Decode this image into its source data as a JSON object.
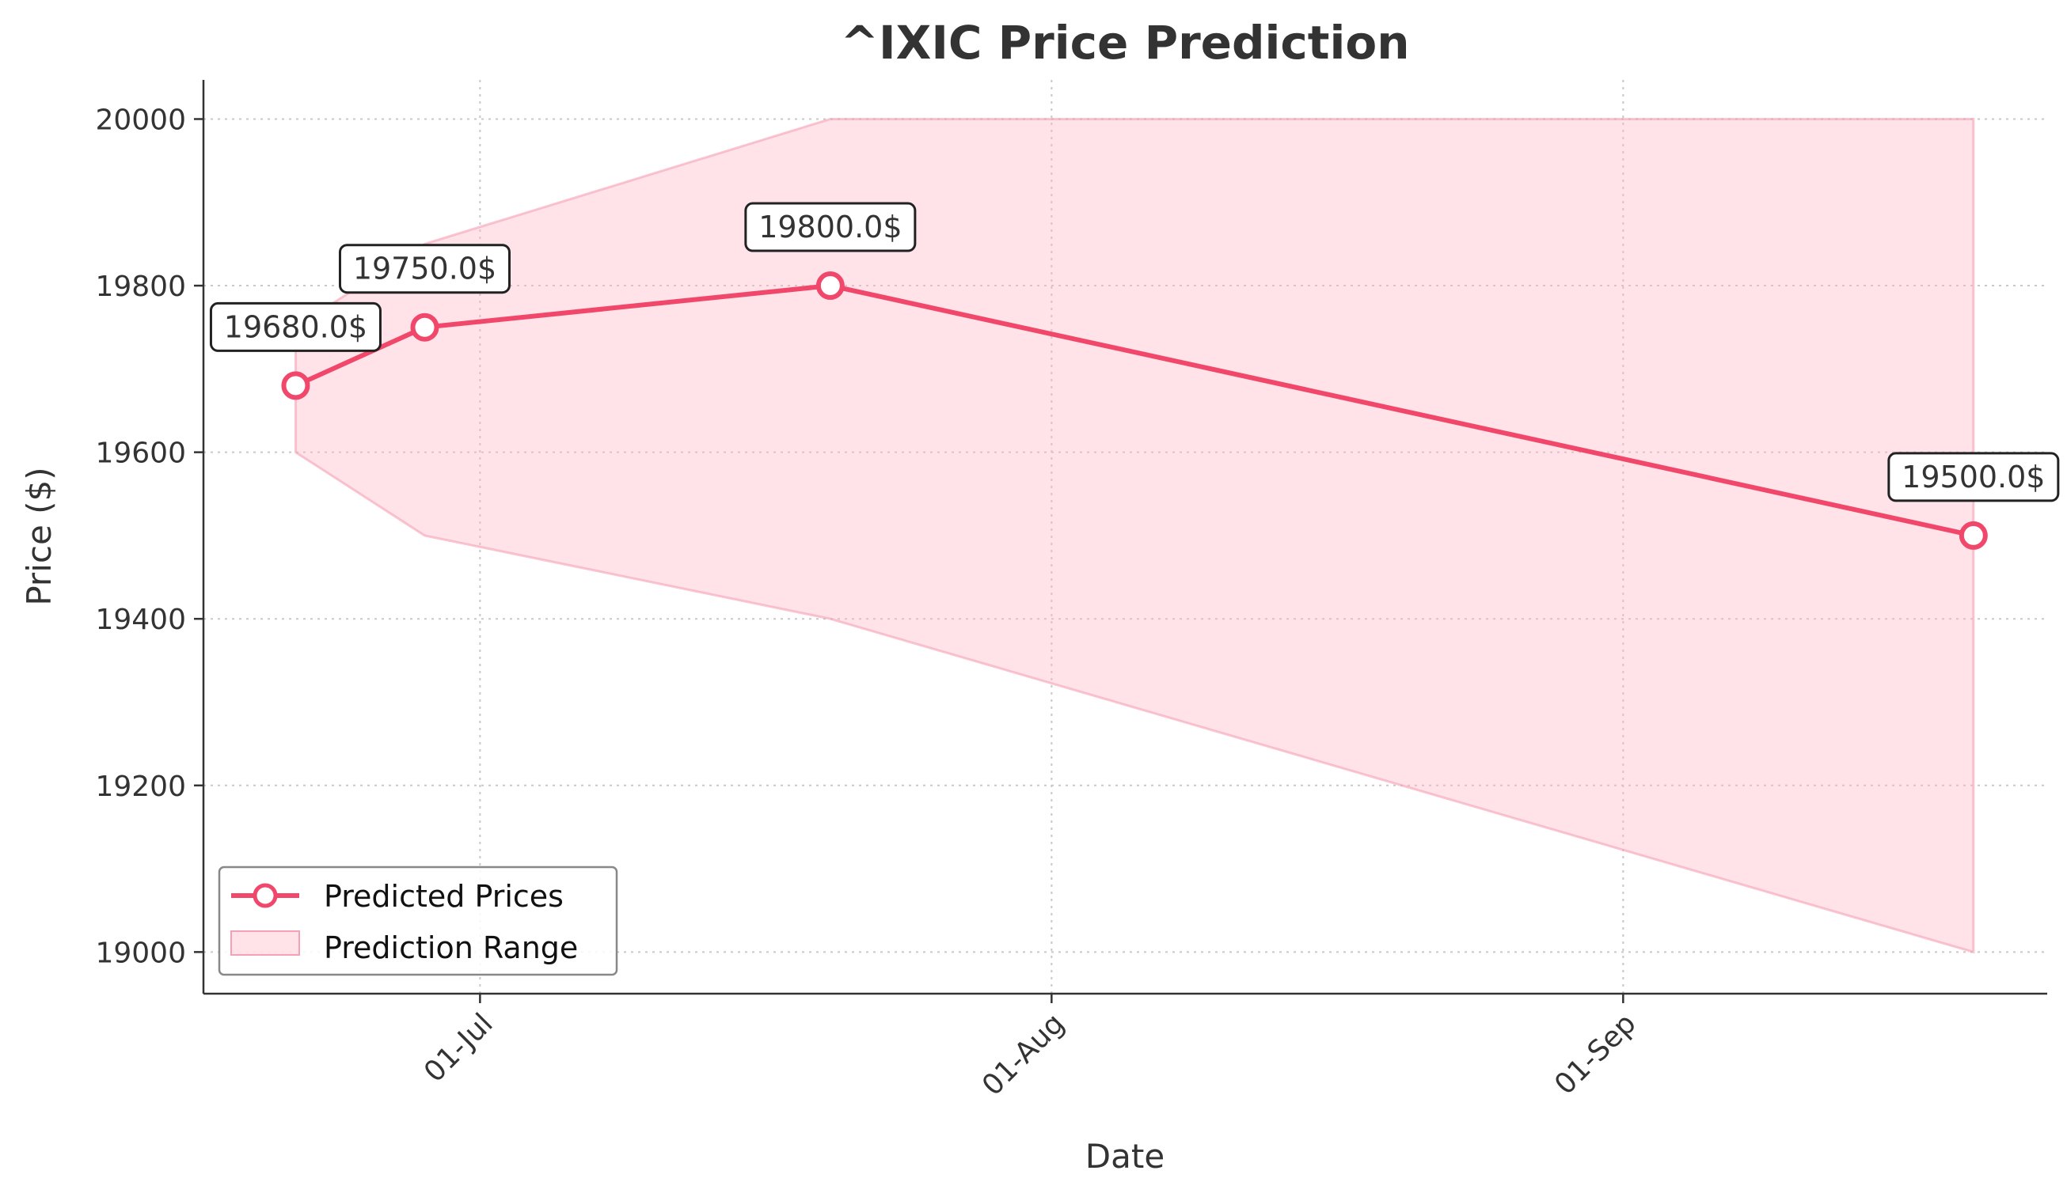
{
  "chart_data": {
    "type": "line",
    "title": "^IXIC Price Prediction",
    "xlabel": "Date",
    "ylabel": "Price ($)",
    "x_ticks": [
      {
        "date": "2024-07-01",
        "label": "01-Jul"
      },
      {
        "date": "2024-08-01",
        "label": "01-Aug"
      },
      {
        "date": "2024-09-01",
        "label": "01-Sep"
      }
    ],
    "y_ticks": [
      19000,
      19200,
      19400,
      19600,
      19800,
      20000
    ],
    "xlim": [
      "2024-06-16",
      "2024-09-24"
    ],
    "ylim": [
      18950,
      20047
    ],
    "grid": true,
    "legend_position": "lower-left",
    "colors": {
      "line": "#f0476a",
      "band": "#ffb6c6",
      "band_edge": "#f5a0b4"
    },
    "series": [
      {
        "name": "Predicted Prices",
        "x": [
          "2024-06-21",
          "2024-06-28",
          "2024-07-20",
          "2024-09-20"
        ],
        "y": [
          19680,
          19750,
          19800,
          19500
        ],
        "annotations": [
          "19680.0$",
          "19750.0$",
          "19800.0$",
          "19500.0$"
        ]
      },
      {
        "name": "Prediction Range",
        "x": [
          "2024-06-21",
          "2024-06-28",
          "2024-07-20",
          "2024-09-20"
        ],
        "lower": [
          19600,
          19500,
          19400,
          19000
        ],
        "upper": [
          19750,
          19850,
          20000,
          20000
        ]
      }
    ]
  }
}
